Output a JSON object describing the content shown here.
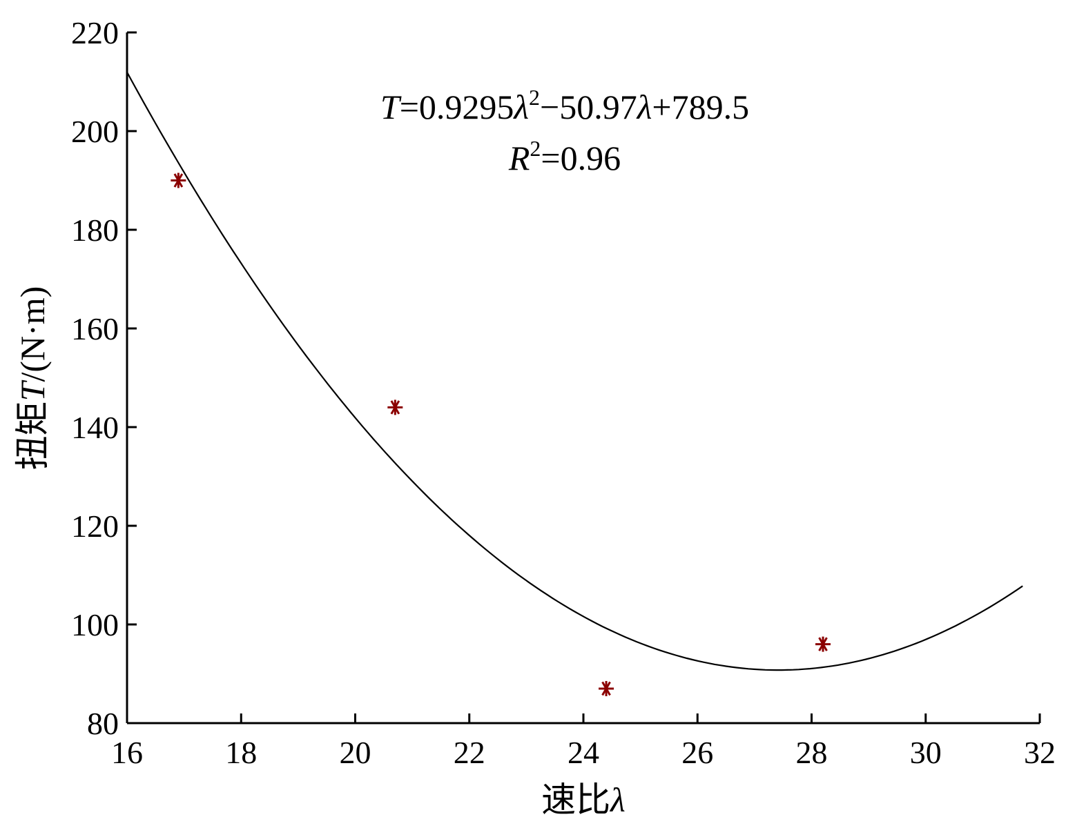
{
  "chart_data": {
    "type": "scatter",
    "xlabel_prefix": "速比",
    "xlabel_symbol": "λ",
    "ylabel_prefix": "扭矩",
    "ylabel_symbol": "T",
    "ylabel_unit": "/(N·m)",
    "xlim": [
      16,
      32
    ],
    "ylim": [
      80,
      220
    ],
    "xticks": [
      "16",
      "18",
      "20",
      "22",
      "24",
      "26",
      "28",
      "30",
      "32"
    ],
    "yticks": [
      "80",
      "100",
      "120",
      "140",
      "160",
      "180",
      "200",
      "220"
    ],
    "grid": false,
    "series": [
      {
        "type": "scatter",
        "marker": "asterisk",
        "color": "#8b0000",
        "x": [
          16.9,
          20.7,
          24.4,
          28.2
        ],
        "y": [
          190,
          144,
          87,
          96
        ]
      },
      {
        "type": "line",
        "color": "#000000",
        "fit": {
          "a": 0.9295,
          "b": -50.97,
          "c": 789.5
        },
        "x_range": [
          16,
          31.7
        ]
      }
    ],
    "annotation": {
      "eq_var": "T",
      "eq_coef1": "=0.9295",
      "eq_lambda1": "λ",
      "eq_sup": "2",
      "eq_mid": "−50.97",
      "eq_lambda2": "λ",
      "eq_end": "+789.5",
      "r_var": "R",
      "r_sup": "2",
      "r_value": "=0.96"
    }
  }
}
